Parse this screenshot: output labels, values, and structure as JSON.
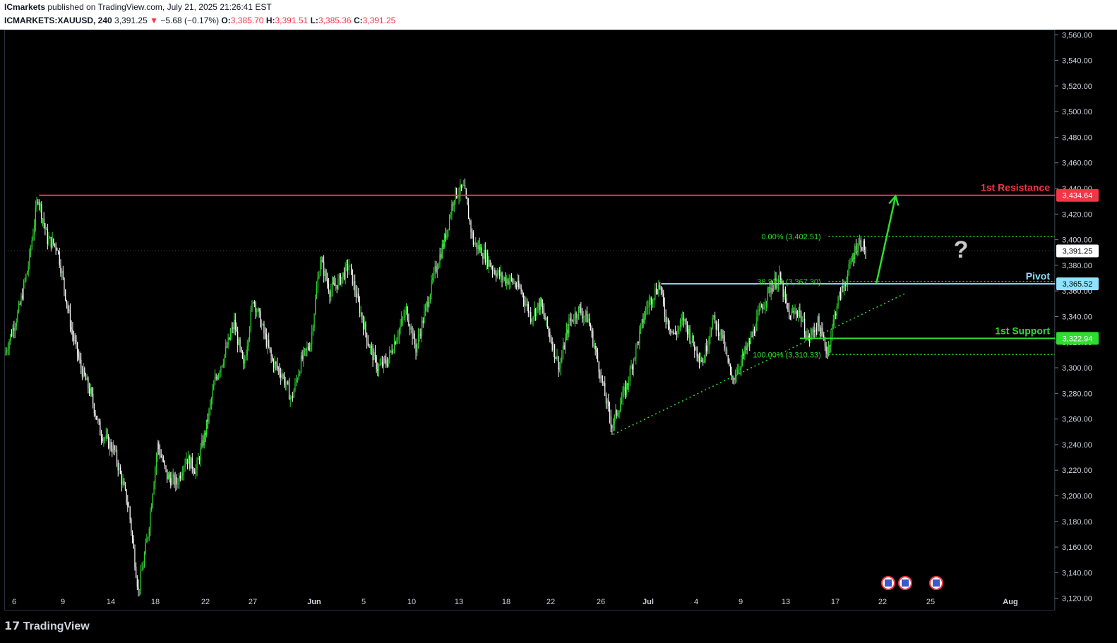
{
  "header": {
    "publisher": "ICmarkets",
    "published_text": "published on TradingView.com, July 21, 2025 21:26:41 EST",
    "symbol": "ICMARKETS:XAUUSD, 240",
    "last": "3,391.25",
    "change_arrow": "▼",
    "change": "−5.68 (−0.17%)",
    "open_label": "O:",
    "open": "3,385.70",
    "high_label": "H:",
    "high": "3,391.51",
    "low_label": "L:",
    "low": "3,385.36",
    "close_label": "C:",
    "close": "3,391.25"
  },
  "footer": {
    "logo_text": "TradingView",
    "logo_icon": "tradingview-logo-icon"
  },
  "colors": {
    "bull": "#2ede2e",
    "bear": "#ffffff",
    "resistance": "#f23645",
    "pivot": "#8fe3ff",
    "support": "#2ede2e",
    "fib": "#2ede2e"
  },
  "chart_data": {
    "type": "candlestick",
    "instrument": "XAUUSD",
    "timeframe": "240",
    "y_ticks": [
      3560,
      3540,
      3520,
      3500,
      3480,
      3460,
      3440,
      3420,
      3400,
      3380,
      3360,
      3340,
      3320,
      3300,
      3280,
      3260,
      3240,
      3220,
      3200,
      3180,
      3160,
      3140,
      3120
    ],
    "y_tick_labels": [
      "3,560.00",
      "3,540.00",
      "3,520.00",
      "3,500.00",
      "3,480.00",
      "3,460.00",
      "3,440.00",
      "3,420.00",
      "3,400.00",
      "3,380.00",
      "3,360.00",
      "3,340.00",
      "3,320.00",
      "3,300.00",
      "3,280.00",
      "3,260.00",
      "3,240.00",
      "3,220.00",
      "3,200.00",
      "3,180.00",
      "3,160.00",
      "3,140.00",
      "3,120.00"
    ],
    "ylim": [
      3111,
      3564
    ],
    "x_tick_labels": [
      "6",
      "9",
      "14",
      "18",
      "22",
      "27",
      "Jun",
      "5",
      "10",
      "13",
      "18",
      "22",
      "26",
      "Jul",
      "4",
      "9",
      "13",
      "17",
      "22",
      "25",
      "Aug"
    ],
    "price_path": [
      [
        0,
        3310
      ],
      [
        3,
        3345
      ],
      [
        5,
        3380
      ],
      [
        7,
        3434
      ],
      [
        9,
        3400
      ],
      [
        11,
        3395
      ],
      [
        14,
        3330
      ],
      [
        16,
        3300
      ],
      [
        18,
        3280
      ],
      [
        20,
        3250
      ],
      [
        23,
        3235
      ],
      [
        26,
        3190
      ],
      [
        28,
        3125
      ],
      [
        30,
        3170
      ],
      [
        32,
        3240
      ],
      [
        34,
        3215
      ],
      [
        36,
        3210
      ],
      [
        38,
        3230
      ],
      [
        40,
        3220
      ],
      [
        42,
        3250
      ],
      [
        44,
        3290
      ],
      [
        46,
        3310
      ],
      [
        48,
        3335
      ],
      [
        50,
        3300
      ],
      [
        52,
        3355
      ],
      [
        54,
        3330
      ],
      [
        56,
        3305
      ],
      [
        58,
        3295
      ],
      [
        60,
        3275
      ],
      [
        62,
        3305
      ],
      [
        64,
        3320
      ],
      [
        66,
        3385
      ],
      [
        68,
        3360
      ],
      [
        70,
        3368
      ],
      [
        72,
        3380
      ],
      [
        74,
        3350
      ],
      [
        76,
        3320
      ],
      [
        78,
        3300
      ],
      [
        80,
        3305
      ],
      [
        82,
        3325
      ],
      [
        84,
        3345
      ],
      [
        86,
        3315
      ],
      [
        88,
        3345
      ],
      [
        90,
        3375
      ],
      [
        92,
        3400
      ],
      [
        94,
        3435
      ],
      [
        96,
        3440
      ],
      [
        98,
        3398
      ],
      [
        100,
        3390
      ],
      [
        102,
        3378
      ],
      [
        104,
        3370
      ],
      [
        106,
        3368
      ],
      [
        108,
        3360
      ],
      [
        110,
        3340
      ],
      [
        112,
        3350
      ],
      [
        114,
        3325
      ],
      [
        116,
        3300
      ],
      [
        118,
        3335
      ],
      [
        120,
        3345
      ],
      [
        122,
        3338
      ],
      [
        124,
        3305
      ],
      [
        126,
        3270
      ],
      [
        127,
        3255
      ],
      [
        128,
        3265
      ],
      [
        130,
        3285
      ],
      [
        132,
        3315
      ],
      [
        134,
        3345
      ],
      [
        136,
        3360
      ],
      [
        137,
        3365
      ],
      [
        138,
        3342
      ],
      [
        140,
        3325
      ],
      [
        142,
        3338
      ],
      [
        144,
        3318
      ],
      [
        146,
        3305
      ],
      [
        148,
        3338
      ],
      [
        150,
        3325
      ],
      [
        152,
        3290
      ],
      [
        154,
        3305
      ],
      [
        156,
        3322
      ],
      [
        158,
        3345
      ],
      [
        160,
        3362
      ],
      [
        162,
        3370
      ],
      [
        164,
        3340
      ],
      [
        166,
        3345
      ],
      [
        168,
        3322
      ],
      [
        170,
        3335
      ],
      [
        172,
        3312
      ],
      [
        174,
        3350
      ],
      [
        176,
        3370
      ],
      [
        178,
        3395
      ],
      [
        179,
        3398
      ],
      [
        180,
        3391
      ]
    ],
    "levels": [
      {
        "name": "1st Resistance",
        "value": 3434.64,
        "label": "3,434.64"
      },
      {
        "name": "Pivot",
        "value": 3365.52,
        "label": "3,365.52"
      },
      {
        "name": "1st Support",
        "value": 3322.94,
        "label": "3,322.94"
      }
    ],
    "last_price": {
      "value": 3391.25,
      "label": "3,391.25"
    },
    "fibonacci": [
      {
        "label": "0.00% (3,402.51)",
        "value": 3402.51
      },
      {
        "label": "38.20% (3,367.30)",
        "value": 3367.3
      },
      {
        "label": "100.00% (3,310.33)",
        "value": 3310.33
      }
    ],
    "trendline": [
      [
        127,
        3248
      ],
      [
        188,
        3358
      ]
    ],
    "projection_arrow": {
      "from": [
        182,
        3366
      ],
      "to": [
        186,
        3434
      ]
    },
    "question_mark": "?",
    "event_markers": [
      {
        "name": "us-flag-icon"
      },
      {
        "name": "us-flag-icon"
      },
      {
        "name": "us-flag-icon"
      }
    ]
  }
}
